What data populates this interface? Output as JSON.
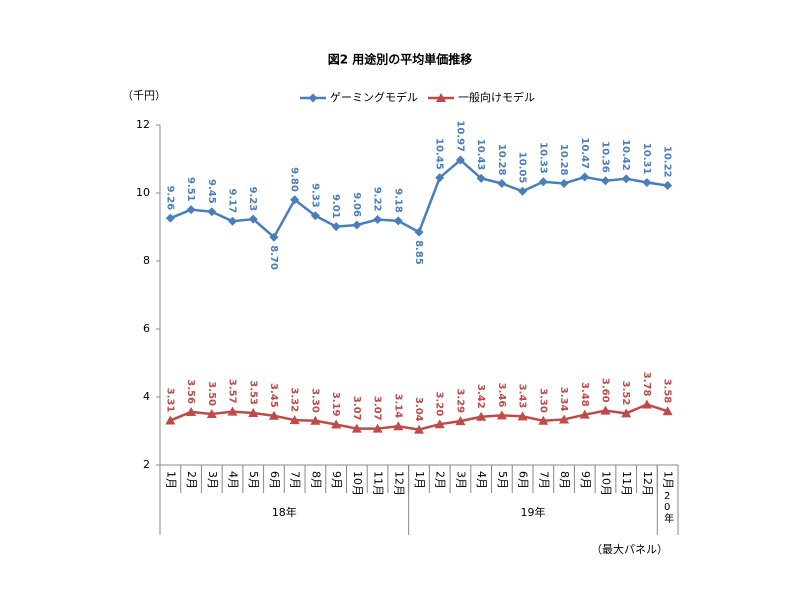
{
  "chart_data": {
    "type": "line",
    "title": "図2 用途別の平均単価推移",
    "y_unit_label": "（千円）",
    "footnote": "（最大パネル）",
    "categories": [
      "1月",
      "2月",
      "3月",
      "4月",
      "5月",
      "6月",
      "7月",
      "8月",
      "9月",
      "10月",
      "11月",
      "12月",
      "1月",
      "2月",
      "3月",
      "4月",
      "5月",
      "6月",
      "7月",
      "8月",
      "9月",
      "10月",
      "11月",
      "12月",
      "1月"
    ],
    "groups": [
      {
        "label": "18年",
        "span": 12
      },
      {
        "label": "19年",
        "span": 12
      },
      {
        "label": "20年",
        "span": 1
      }
    ],
    "series": [
      {
        "name": "ゲーミングモデル",
        "color": "#4a7ebb",
        "marker": "diamond",
        "values": [
          9.26,
          9.51,
          9.45,
          9.17,
          9.23,
          8.7,
          9.8,
          9.33,
          9.01,
          9.06,
          9.22,
          9.18,
          8.85,
          10.45,
          10.97,
          10.43,
          10.28,
          10.05,
          10.33,
          10.28,
          10.47,
          10.36,
          10.42,
          10.31,
          10.22
        ],
        "value_labels": [
          "9.26",
          "9.51",
          "9.45",
          "9.17",
          "9.23",
          "8.70",
          "9.80",
          "9.33",
          "9.01",
          "9.06",
          "9.22",
          "9.18",
          "8.85",
          "10.45",
          "10.97",
          "10.43",
          "10.28",
          "10.05",
          "10.33",
          "10.28",
          "10.47",
          "10.36",
          "10.42",
          "10.31",
          "10.22"
        ]
      },
      {
        "name": "一般向けモデル",
        "color": "#be4b48",
        "marker": "triangle",
        "values": [
          3.31,
          3.56,
          3.5,
          3.57,
          3.53,
          3.45,
          3.32,
          3.3,
          3.19,
          3.07,
          3.07,
          3.14,
          3.04,
          3.2,
          3.29,
          3.42,
          3.46,
          3.43,
          3.3,
          3.34,
          3.48,
          3.6,
          3.52,
          3.78,
          3.58
        ],
        "value_labels": [
          "3.31",
          "3.56",
          "3.50",
          "3.57",
          "3.53",
          "3.45",
          "3.32",
          "3.30",
          "3.19",
          "3.07",
          "3.07",
          "3.14",
          "3.04",
          "3.20",
          "3.29",
          "3.42",
          "3.46",
          "3.43",
          "3.30",
          "3.34",
          "3.48",
          "3.60",
          "3.52",
          "3.78",
          "3.58"
        ]
      }
    ],
    "ylim": [
      2,
      12
    ],
    "yticks": [
      2,
      4,
      6,
      8,
      10,
      12
    ],
    "grid": false
  }
}
